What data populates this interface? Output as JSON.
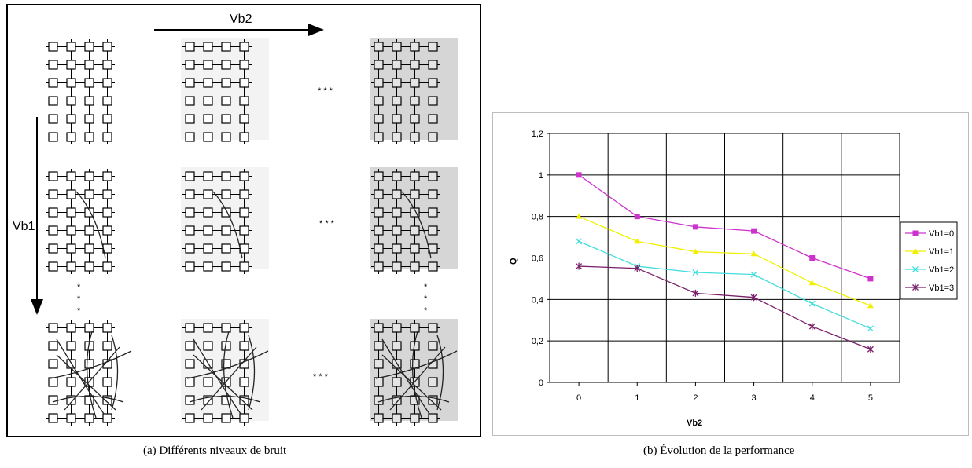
{
  "panel_a": {
    "vb2_label": "Vb2",
    "vb1_label": "Vb1",
    "h_ellipsis": "* * *",
    "v_ellipsis": "*"
  },
  "captions": {
    "a": "(a)  Différents niveaux de bruit",
    "b": "(b)  Évolution de la performance"
  },
  "chart_data": {
    "type": "line",
    "title": "",
    "xlabel": "Vb2",
    "ylabel": "Q",
    "x": [
      0,
      1,
      2,
      3,
      4,
      5
    ],
    "ylim": [
      0,
      1.2
    ],
    "yticks": [
      "0",
      "0,2",
      "0,4",
      "0,6",
      "0,8",
      "1",
      "1,2"
    ],
    "grid": true,
    "legend_position": "right",
    "series": [
      {
        "name": "Vb1=0",
        "values": [
          1.0,
          0.8,
          0.75,
          0.73,
          0.6,
          0.5
        ],
        "color": "#cc33cc",
        "marker": "square"
      },
      {
        "name": "Vb1=1",
        "values": [
          0.8,
          0.68,
          0.63,
          0.62,
          0.48,
          0.37
        ],
        "color": "#f0f000",
        "marker": "triangle"
      },
      {
        "name": "Vb1=2",
        "values": [
          0.68,
          0.56,
          0.53,
          0.52,
          0.38,
          0.26
        ],
        "color": "#44dddd",
        "marker": "x"
      },
      {
        "name": "Vb1=3",
        "values": [
          0.56,
          0.55,
          0.43,
          0.41,
          0.27,
          0.16
        ],
        "color": "#7a1f6a",
        "marker": "star"
      }
    ]
  }
}
